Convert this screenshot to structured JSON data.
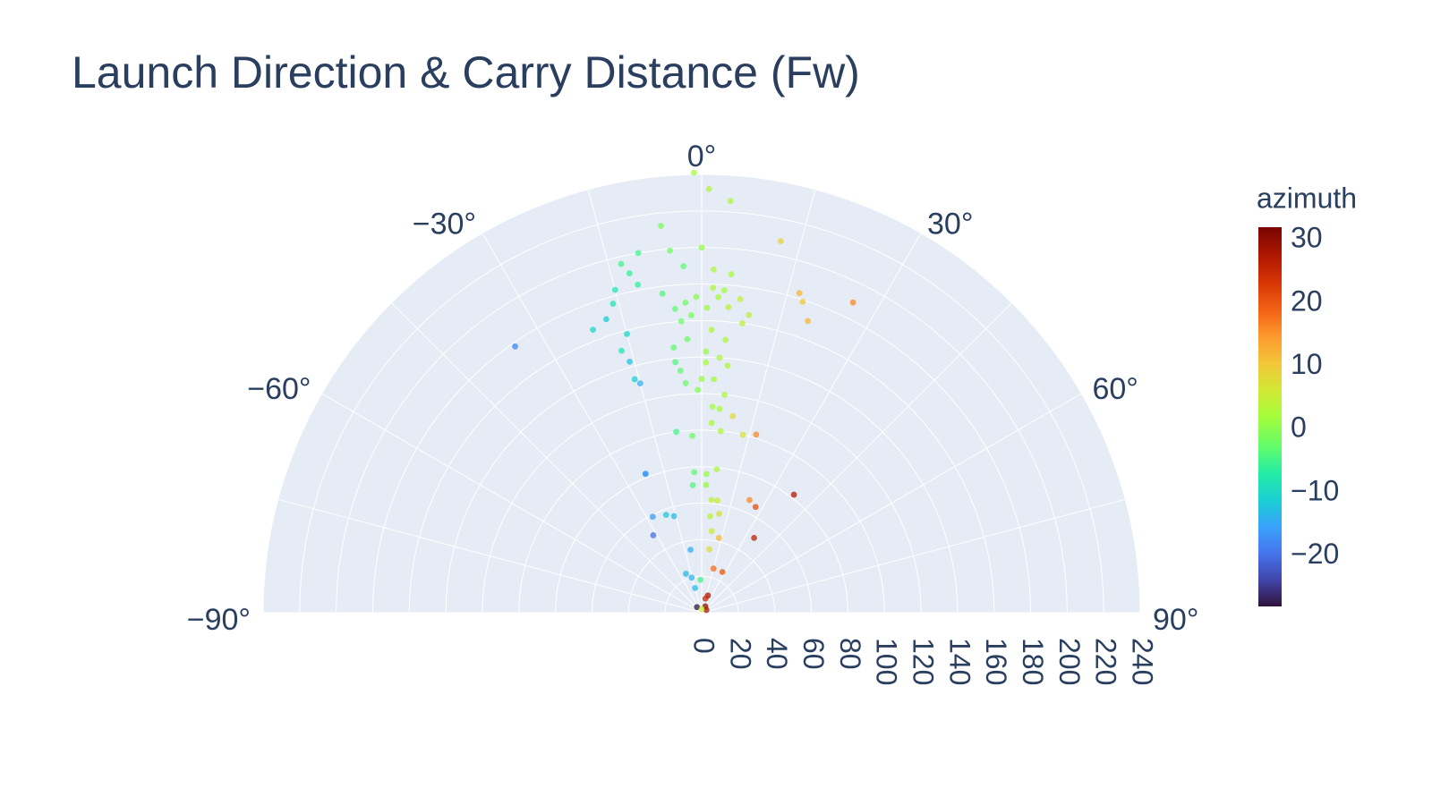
{
  "chart_data": {
    "type": "scatter",
    "subtype": "polar",
    "title": "Launch Direction & Carry Distance (Fw)",
    "angular_axis": {
      "range": [
        -90,
        90
      ],
      "tick_labels": [
        "−90°",
        "−60°",
        "−30°",
        "0°",
        "30°",
        "60°",
        "90°"
      ],
      "tick_values": [
        -90,
        -60,
        -30,
        0,
        30,
        60,
        90
      ]
    },
    "radial_axis": {
      "range": [
        0,
        240
      ],
      "tick_values": [
        0,
        20,
        40,
        60,
        80,
        100,
        120,
        140,
        160,
        180,
        200,
        220,
        240
      ],
      "tick_labels": [
        "0",
        "20",
        "40",
        "60",
        "80",
        "100",
        "120",
        "140",
        "160",
        "180",
        "200",
        "220",
        "240"
      ]
    },
    "colorbar": {
      "title": "azimuth",
      "range": [
        -28,
        32
      ],
      "tick_values": [
        30,
        20,
        10,
        0,
        -10,
        -20
      ],
      "tick_labels": [
        "30",
        "20",
        "10",
        "0",
        "−10",
        "−20"
      ],
      "colorscale": "Turbo"
    },
    "points": [
      {
        "theta": -1,
        "r": 241,
        "azimuth": 2
      },
      {
        "theta": 1,
        "r": 232,
        "azimuth": 3
      },
      {
        "theta": 4,
        "r": 226,
        "azimuth": 3
      },
      {
        "theta": -6,
        "r": 213,
        "azimuth": -1
      },
      {
        "theta": 12,
        "r": 208,
        "azimuth": 9
      },
      {
        "theta": -10,
        "r": 200,
        "azimuth": -5
      },
      {
        "theta": -5,
        "r": 199,
        "azimuth": -2
      },
      {
        "theta": 0,
        "r": 200,
        "azimuth": 1
      },
      {
        "theta": -13,
        "r": 196,
        "azimuth": -5
      },
      {
        "theta": -12,
        "r": 190,
        "azimuth": -6
      },
      {
        "theta": -3,
        "r": 190,
        "azimuth": -3
      },
      {
        "theta": 2,
        "r": 188,
        "azimuth": 3
      },
      {
        "theta": 5,
        "r": 186,
        "azimuth": 2
      },
      {
        "theta": -11,
        "r": 183,
        "azimuth": -6
      },
      {
        "theta": -15,
        "r": 183,
        "azimuth": -8
      },
      {
        "theta": -16,
        "r": 176,
        "azimuth": -8
      },
      {
        "theta": 17,
        "r": 183,
        "azimuth": 12
      },
      {
        "theta": 18,
        "r": 179,
        "azimuth": 10
      },
      {
        "theta": 26,
        "r": 189,
        "azimuth": 16
      },
      {
        "theta": -7,
        "r": 176,
        "azimuth": -4
      },
      {
        "theta": 2,
        "r": 178,
        "azimuth": 3
      },
      {
        "theta": 4,
        "r": 177,
        "azimuth": 2
      },
      {
        "theta": 3,
        "r": 173,
        "azimuth": 2
      },
      {
        "theta": -1,
        "r": 173,
        "azimuth": 0
      },
      {
        "theta": 7,
        "r": 173,
        "azimuth": 5
      },
      {
        "theta": -3,
        "r": 170,
        "azimuth": -2
      },
      {
        "theta": 9,
        "r": 165,
        "azimuth": 4
      },
      {
        "theta": -5,
        "r": 167,
        "azimuth": -3
      },
      {
        "theta": -18,
        "r": 169,
        "azimuth": -11
      },
      {
        "theta": -21,
        "r": 166,
        "azimuth": -10
      },
      {
        "theta": 20,
        "r": 170,
        "azimuth": 12
      },
      {
        "theta": 1,
        "r": 167,
        "azimuth": 1
      },
      {
        "theta": 5,
        "r": 168,
        "azimuth": 4
      },
      {
        "theta": -2,
        "r": 163,
        "azimuth": -1
      },
      {
        "theta": 8,
        "r": 160,
        "azimuth": 4
      },
      {
        "theta": -35,
        "r": 178,
        "azimuth": -18
      },
      {
        "theta": -15,
        "r": 158,
        "azimuth": -10
      },
      {
        "theta": -4,
        "r": 160,
        "azimuth": -2
      },
      {
        "theta": 2,
        "r": 155,
        "azimuth": 3
      },
      {
        "theta": -17,
        "r": 150,
        "azimuth": -8
      },
      {
        "theta": -3,
        "r": 150,
        "azimuth": -2
      },
      {
        "theta": 5,
        "r": 150,
        "azimuth": 3
      },
      {
        "theta": -6,
        "r": 146,
        "azimuth": -3
      },
      {
        "theta": 1,
        "r": 143,
        "azimuth": 1
      },
      {
        "theta": -16,
        "r": 143,
        "azimuth": -12
      },
      {
        "theta": 4,
        "r": 140,
        "azimuth": 3
      },
      {
        "theta": -6,
        "r": 138,
        "azimuth": -4
      },
      {
        "theta": -5,
        "r": 133,
        "azimuth": -3
      },
      {
        "theta": 1,
        "r": 137,
        "azimuth": 2
      },
      {
        "theta": 6,
        "r": 136,
        "azimuth": 3
      },
      {
        "theta": -4,
        "r": 126,
        "azimuth": -2
      },
      {
        "theta": -16,
        "r": 133,
        "azimuth": -11
      },
      {
        "theta": -15,
        "r": 130,
        "azimuth": -14
      },
      {
        "theta": 0,
        "r": 128,
        "azimuth": 1
      },
      {
        "theta": 3,
        "r": 128,
        "azimuth": 2
      },
      {
        "theta": -1,
        "r": 122,
        "azimuth": 0
      },
      {
        "theta": 6,
        "r": 120,
        "azimuth": 3
      },
      {
        "theta": 3,
        "r": 113,
        "azimuth": 2
      },
      {
        "theta": 5,
        "r": 112,
        "azimuth": 2
      },
      {
        "theta": 9,
        "r": 109,
        "azimuth": 8
      },
      {
        "theta": 3,
        "r": 104,
        "azimuth": 2
      },
      {
        "theta": 6,
        "r": 100,
        "azimuth": 3
      },
      {
        "theta": 17,
        "r": 102,
        "azimuth": 16
      },
      {
        "theta": 13,
        "r": 100,
        "azimuth": 7
      },
      {
        "theta": -8,
        "r": 100,
        "azimuth": -5
      },
      {
        "theta": -3,
        "r": 97,
        "azimuth": -2
      },
      {
        "theta": -22,
        "r": 82,
        "azimuth": -17
      },
      {
        "theta": -22,
        "r": 82,
        "azimuth": -16
      },
      {
        "theta": 38,
        "r": 82,
        "azimuth": 27
      },
      {
        "theta": 6,
        "r": 79,
        "azimuth": 3
      },
      {
        "theta": -3,
        "r": 77,
        "azimuth": -3
      },
      {
        "theta": 2,
        "r": 76,
        "azimuth": 1
      },
      {
        "theta": -4,
        "r": 70,
        "azimuth": -4
      },
      {
        "theta": 2,
        "r": 70,
        "azimuth": 1
      },
      {
        "theta": 23,
        "r": 67,
        "azimuth": 16
      },
      {
        "theta": 27,
        "r": 65,
        "azimuth": 21
      },
      {
        "theta": 5,
        "r": 62,
        "azimuth": 4
      },
      {
        "theta": 8,
        "r": 62,
        "azimuth": 6
      },
      {
        "theta": -27,
        "r": 59,
        "azimuth": -16
      },
      {
        "theta": -20,
        "r": 57,
        "azimuth": -12
      },
      {
        "theta": -16,
        "r": 55,
        "azimuth": -13
      },
      {
        "theta": 10,
        "r": 55,
        "azimuth": 7
      },
      {
        "theta": 5,
        "r": 53,
        "azimuth": 4
      },
      {
        "theta": 35,
        "r": 50,
        "azimuth": 26
      },
      {
        "theta": 7,
        "r": 45,
        "azimuth": 5
      },
      {
        "theta": -32,
        "r": 50,
        "azimuth": -20
      },
      {
        "theta": 13,
        "r": 42,
        "azimuth": 12
      },
      {
        "theta": -10,
        "r": 35,
        "azimuth": -14
      },
      {
        "theta": 7,
        "r": 35,
        "azimuth": 8
      },
      {
        "theta": 15,
        "r": 25,
        "azimuth": 18
      },
      {
        "theta": 27,
        "r": 25,
        "azimuth": 20
      },
      {
        "theta": -22,
        "r": 23,
        "azimuth": -13
      },
      {
        "theta": -16,
        "r": 20,
        "azimuth": -14
      },
      {
        "theta": -2,
        "r": 18,
        "azimuth": -5
      },
      {
        "theta": -15,
        "r": 14,
        "azimuth": -13
      },
      {
        "theta": 20,
        "r": 10,
        "azimuth": 28
      },
      {
        "theta": 15,
        "r": 8,
        "azimuth": 25
      },
      {
        "theta": -40,
        "r": 4,
        "azimuth": -28
      },
      {
        "theta": 30,
        "r": 4,
        "azimuth": 30
      },
      {
        "theta": 60,
        "r": 3,
        "azimuth": 28
      },
      {
        "theta": 0,
        "r": 2,
        "azimuth": 5
      }
    ]
  }
}
